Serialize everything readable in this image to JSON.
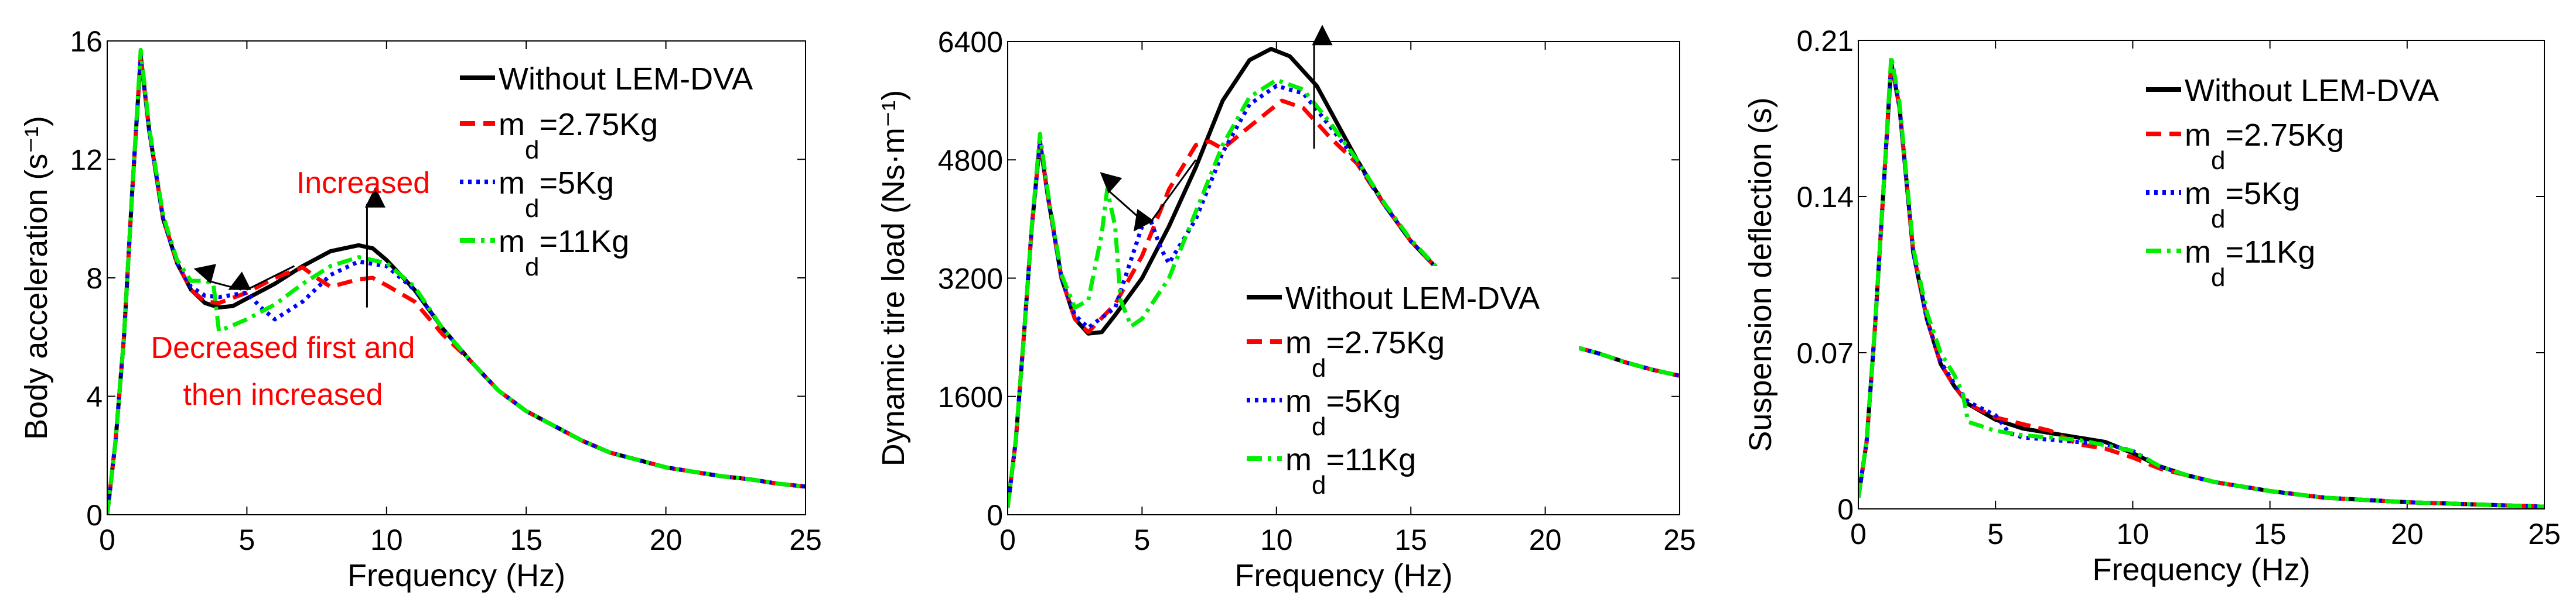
{
  "colors": {
    "without": "#000000",
    "m275": "#ff0000",
    "m5": "#0000ff",
    "m11": "#00ee00"
  },
  "chart_data": [
    {
      "type": "line",
      "xlabel": "Frequency (Hz)",
      "ylabel": "Body acceleration (s⁻¹)",
      "xlim": [
        0,
        25
      ],
      "ylim": [
        0,
        16
      ],
      "xticks": [
        0,
        5,
        10,
        15,
        20,
        25
      ],
      "yticks": [
        0,
        4,
        8,
        12,
        16
      ],
      "xtick_labels": [
        "0",
        "5",
        "10",
        "15",
        "20",
        "25"
      ],
      "ytick_labels": [
        "0",
        "4",
        "8",
        "12",
        "16"
      ],
      "legend_placement": "top-right",
      "legend": [
        {
          "text": "Without LEM-DVA"
        },
        {
          "text": "m",
          "sub": "d",
          "rest": "=2.75Kg"
        },
        {
          "text": "m",
          "sub": "d",
          "rest": "=5Kg"
        },
        {
          "text": "m",
          "sub": "d",
          "rest": "=11Kg"
        }
      ],
      "annotations": [
        {
          "text": "Increased"
        },
        {
          "text": "Decreased first and"
        },
        {
          "text": "then increased"
        }
      ],
      "arrows": [
        {
          "from": [
            9.3,
            7.0
          ],
          "to": [
            9.3,
            10.5
          ]
        },
        {
          "from": [
            6.7,
            8.4
          ],
          "to": [
            5.0,
            7.6
          ]
        },
        {
          "from": [
            4.8,
            7.6
          ],
          "to": [
            3.6,
            7.9
          ]
        }
      ],
      "series": [
        {
          "name": "Without LEM-DVA",
          "key": "without",
          "style": "solid",
          "x": [
            0,
            0.3,
            0.6,
            0.9,
            1.2,
            1.5,
            2,
            2.5,
            3,
            3.5,
            4,
            4.5,
            5,
            6,
            7,
            8,
            9,
            9.5,
            10,
            11,
            12,
            13,
            14,
            15,
            16,
            17,
            18,
            19,
            20,
            21,
            22,
            23,
            24,
            25
          ],
          "y": [
            0,
            2.5,
            6,
            11,
            15.5,
            13,
            10,
            8.5,
            7.6,
            7.15,
            7.0,
            7.05,
            7.3,
            7.8,
            8.4,
            8.9,
            9.1,
            9.0,
            8.6,
            7.6,
            6.3,
            5.2,
            4.2,
            3.5,
            3.0,
            2.5,
            2.1,
            1.85,
            1.6,
            1.45,
            1.3,
            1.2,
            1.05,
            0.95
          ]
        },
        {
          "name": "md=2.75Kg",
          "key": "m275",
          "style": "dashed",
          "x": [
            0,
            0.3,
            0.6,
            0.9,
            1.2,
            1.5,
            2,
            2.5,
            3,
            3.5,
            4,
            5,
            6,
            7,
            7.5,
            8,
            9,
            9.5,
            10,
            11,
            12,
            13,
            14,
            15,
            16,
            17,
            18,
            19,
            20,
            21,
            22,
            23,
            24,
            25
          ],
          "y": [
            0,
            2.5,
            6,
            11,
            15.5,
            13,
            10,
            8.5,
            7.6,
            7.2,
            7.15,
            7.5,
            8.0,
            8.35,
            8.0,
            7.7,
            7.95,
            8.0,
            7.75,
            7.2,
            6.1,
            5.2,
            4.2,
            3.5,
            3.0,
            2.5,
            2.1,
            1.85,
            1.6,
            1.45,
            1.3,
            1.2,
            1.05,
            0.95
          ]
        },
        {
          "name": "md=5Kg",
          "key": "m5",
          "style": "dotted",
          "x": [
            0,
            0.3,
            0.6,
            0.9,
            1.2,
            1.5,
            2,
            2.5,
            3,
            3.5,
            4,
            5,
            5.5,
            6,
            7,
            8,
            9,
            10,
            11,
            12,
            13,
            14,
            15,
            16,
            17,
            18,
            19,
            20,
            21,
            22,
            23,
            24,
            25
          ],
          "y": [
            0,
            2.5,
            6,
            11,
            15.5,
            13,
            10,
            8.5,
            7.7,
            7.4,
            7.35,
            7.5,
            7.0,
            6.6,
            7.2,
            8.1,
            8.55,
            8.4,
            7.6,
            6.3,
            5.2,
            4.2,
            3.5,
            3.0,
            2.5,
            2.1,
            1.85,
            1.6,
            1.45,
            1.3,
            1.2,
            1.05,
            0.95
          ]
        },
        {
          "name": "md=11Kg",
          "key": "m11",
          "style": "dashdot",
          "x": [
            0,
            0.3,
            0.6,
            0.9,
            1.2,
            1.5,
            2,
            2.5,
            3,
            3.5,
            3.8,
            4,
            5,
            6,
            7,
            8,
            9,
            10,
            11,
            12,
            13,
            14,
            15,
            16,
            17,
            18,
            19,
            20,
            21,
            22,
            23,
            24,
            25
          ],
          "y": [
            0,
            2.5,
            6,
            11,
            15.7,
            13.1,
            10.1,
            8.6,
            7.9,
            7.9,
            7.8,
            6.2,
            6.6,
            7.1,
            7.8,
            8.4,
            8.7,
            8.5,
            7.7,
            6.3,
            5.2,
            4.2,
            3.5,
            3.0,
            2.5,
            2.1,
            1.85,
            1.6,
            1.45,
            1.3,
            1.2,
            1.05,
            0.95
          ]
        }
      ]
    },
    {
      "type": "line",
      "xlabel": "Frequency (Hz)",
      "ylabel": "Dynamic tire load (Ns·m⁻¹)",
      "xlim": [
        0,
        25
      ],
      "ylim": [
        0,
        6400
      ],
      "xticks": [
        0,
        5,
        10,
        15,
        20,
        25
      ],
      "yticks": [
        0,
        1600,
        3200,
        4800,
        6400
      ],
      "xtick_labels": [
        "0",
        "5",
        "10",
        "15",
        "20",
        "25"
      ],
      "ytick_labels": [
        "0",
        "1600",
        "3200",
        "4800",
        "6400"
      ],
      "legend_placement": "center-right",
      "legend": [
        {
          "text": "Without LEM-DVA"
        },
        {
          "text": "m",
          "sub": "d",
          "rest": "=2.75Kg"
        },
        {
          "text": "m",
          "sub": "d",
          "rest": "=5Kg"
        },
        {
          "text": "m",
          "sub": "d",
          "rest": "=11Kg"
        }
      ],
      "annotations": [],
      "arrows": [
        {
          "from": [
            11.4,
            4950
          ],
          "to": [
            11.4,
            6400
          ]
        },
        {
          "from": [
            7.0,
            4800
          ],
          "to": [
            5.3,
            3950
          ]
        },
        {
          "from": [
            5.1,
            3950
          ],
          "to": [
            3.7,
            4400
          ]
        }
      ],
      "series": [
        {
          "name": "Without LEM-DVA",
          "key": "without",
          "style": "solid",
          "x": [
            0,
            0.3,
            0.6,
            0.9,
            1.2,
            1.5,
            2,
            2.5,
            3,
            3.5,
            4,
            5,
            6,
            7,
            8,
            9,
            9.8,
            10.5,
            11.5,
            13,
            14,
            15,
            16,
            17,
            18,
            19,
            20,
            21,
            22,
            23,
            24,
            25
          ],
          "y": [
            100,
            1000,
            2400,
            3900,
            5050,
            4300,
            3200,
            2650,
            2450,
            2470,
            2700,
            3200,
            3900,
            4700,
            5600,
            6150,
            6300,
            6200,
            5800,
            4800,
            4200,
            3700,
            3320,
            3000,
            2750,
            2550,
            2400,
            2280,
            2180,
            2060,
            1960,
            1880
          ]
        },
        {
          "name": "md=2.75Kg",
          "key": "m275",
          "style": "dashed",
          "x": [
            0,
            0.3,
            0.6,
            0.9,
            1.2,
            1.5,
            2,
            2.5,
            3,
            4,
            5,
            6,
            7,
            7.5,
            8,
            9,
            10.2,
            11,
            12,
            13,
            14,
            15,
            16,
            17,
            18,
            19,
            20,
            21,
            22,
            23,
            24,
            25
          ],
          "y": [
            100,
            1000,
            2400,
            3900,
            5050,
            4300,
            3200,
            2650,
            2470,
            2850,
            3500,
            4400,
            5000,
            5050,
            4950,
            5250,
            5600,
            5500,
            5100,
            4750,
            4200,
            3700,
            3320,
            3000,
            2750,
            2550,
            2400,
            2280,
            2180,
            2060,
            1960,
            1880
          ]
        },
        {
          "name": "md=5Kg",
          "key": "m5",
          "style": "dotted",
          "x": [
            0,
            0.3,
            0.6,
            0.9,
            1.2,
            1.5,
            2,
            2.5,
            3,
            4,
            5,
            5.3,
            5.7,
            6,
            7,
            8,
            9,
            10,
            11,
            12,
            13,
            14,
            15,
            16,
            17,
            18,
            19,
            20,
            21,
            22,
            23,
            24,
            25
          ],
          "y": [
            100,
            1000,
            2400,
            3900,
            5050,
            4300,
            3200,
            2700,
            2530,
            2800,
            3900,
            4000,
            3600,
            3400,
            4000,
            4900,
            5550,
            5800,
            5700,
            5250,
            4780,
            4200,
            3700,
            3320,
            3000,
            2750,
            2550,
            2400,
            2280,
            2180,
            2060,
            1960,
            1880
          ]
        },
        {
          "name": "md=11Kg",
          "key": "m11",
          "style": "dashdot",
          "x": [
            0,
            0.3,
            0.6,
            0.9,
            1.2,
            1.5,
            2,
            2.5,
            3,
            3.5,
            3.7,
            4,
            4.2,
            4.6,
            5,
            6,
            7,
            8,
            9,
            10,
            11,
            12,
            13,
            14,
            15,
            16,
            17,
            18,
            19,
            20,
            21,
            22,
            23,
            24,
            25
          ],
          "y": [
            100,
            1000,
            2400,
            3900,
            5150,
            4350,
            3250,
            2800,
            2900,
            3800,
            4400,
            3900,
            2900,
            2550,
            2650,
            3200,
            4100,
            5000,
            5650,
            5880,
            5750,
            5300,
            4800,
            4220,
            3720,
            3330,
            3000,
            2750,
            2550,
            2400,
            2280,
            2180,
            2060,
            1960,
            1880
          ]
        }
      ]
    },
    {
      "type": "line",
      "xlabel": "Frequency (Hz)",
      "ylabel": "Suspension deflection (s)",
      "xlim": [
        0,
        25
      ],
      "ylim": [
        0,
        0.21
      ],
      "xticks": [
        0,
        5,
        10,
        15,
        20,
        25
      ],
      "yticks": [
        0,
        0.07,
        0.14,
        0.21
      ],
      "xtick_labels": [
        "0",
        "5",
        "10",
        "15",
        "20",
        "25"
      ],
      "ytick_labels": [
        "0",
        "0.07",
        "0.14",
        "0.21"
      ],
      "legend_placement": "top-right",
      "legend": [
        {
          "text": "Without LEM-DVA"
        },
        {
          "text": "m",
          "sub": "d",
          "rest": "=2.75Kg"
        },
        {
          "text": "m",
          "sub": "d",
          "rest": "=5Kg"
        },
        {
          "text": "m",
          "sub": "d",
          "rest": "=11Kg"
        }
      ],
      "annotations": [],
      "arrows": [],
      "series": [
        {
          "name": "Without LEM-DVA",
          "key": "without",
          "style": "solid",
          "x": [
            0,
            0.3,
            0.6,
            0.9,
            1.2,
            1.5,
            2,
            2.5,
            3,
            3.5,
            4,
            5,
            6,
            7,
            8,
            9,
            10,
            11,
            12,
            13,
            15,
            17,
            20,
            25
          ],
          "y": [
            0.005,
            0.03,
            0.08,
            0.14,
            0.2,
            0.18,
            0.115,
            0.085,
            0.065,
            0.055,
            0.047,
            0.04,
            0.036,
            0.034,
            0.032,
            0.03,
            0.025,
            0.019,
            0.015,
            0.012,
            0.008,
            0.005,
            0.003,
            0.001
          ]
        },
        {
          "name": "md=2.75Kg",
          "key": "m275",
          "style": "dashed",
          "x": [
            0,
            0.3,
            0.6,
            0.9,
            1.2,
            1.5,
            2,
            2.5,
            3,
            3.5,
            4,
            5,
            6,
            7,
            8,
            9,
            10,
            11,
            12,
            13,
            15,
            17,
            20,
            25
          ],
          "y": [
            0.005,
            0.03,
            0.08,
            0.14,
            0.2,
            0.18,
            0.115,
            0.085,
            0.065,
            0.055,
            0.047,
            0.041,
            0.038,
            0.035,
            0.029,
            0.027,
            0.023,
            0.018,
            0.015,
            0.012,
            0.008,
            0.005,
            0.003,
            0.001
          ]
        },
        {
          "name": "md=5Kg",
          "key": "m5",
          "style": "dotted",
          "x": [
            0,
            0.3,
            0.6,
            0.9,
            1.2,
            1.5,
            2,
            2.5,
            3,
            3.5,
            4,
            5,
            5.5,
            6,
            8,
            9,
            10,
            11,
            12,
            13,
            15,
            17,
            20,
            25
          ],
          "y": [
            0.005,
            0.03,
            0.08,
            0.14,
            0.2,
            0.18,
            0.115,
            0.085,
            0.066,
            0.056,
            0.048,
            0.042,
            0.034,
            0.032,
            0.03,
            0.029,
            0.026,
            0.019,
            0.015,
            0.012,
            0.008,
            0.005,
            0.003,
            0.001
          ]
        },
        {
          "name": "md=11Kg",
          "key": "m11",
          "style": "dashdot",
          "x": [
            0,
            0.3,
            0.6,
            0.9,
            1.2,
            1.5,
            2,
            2.5,
            3,
            3.5,
            3.8,
            4,
            5,
            6,
            8,
            10,
            11,
            12,
            13,
            15,
            17,
            20,
            25
          ],
          "y": [
            0.005,
            0.03,
            0.08,
            0.14,
            0.203,
            0.182,
            0.117,
            0.088,
            0.07,
            0.06,
            0.052,
            0.039,
            0.035,
            0.033,
            0.031,
            0.026,
            0.019,
            0.015,
            0.012,
            0.008,
            0.005,
            0.003,
            0.001
          ]
        }
      ]
    }
  ]
}
